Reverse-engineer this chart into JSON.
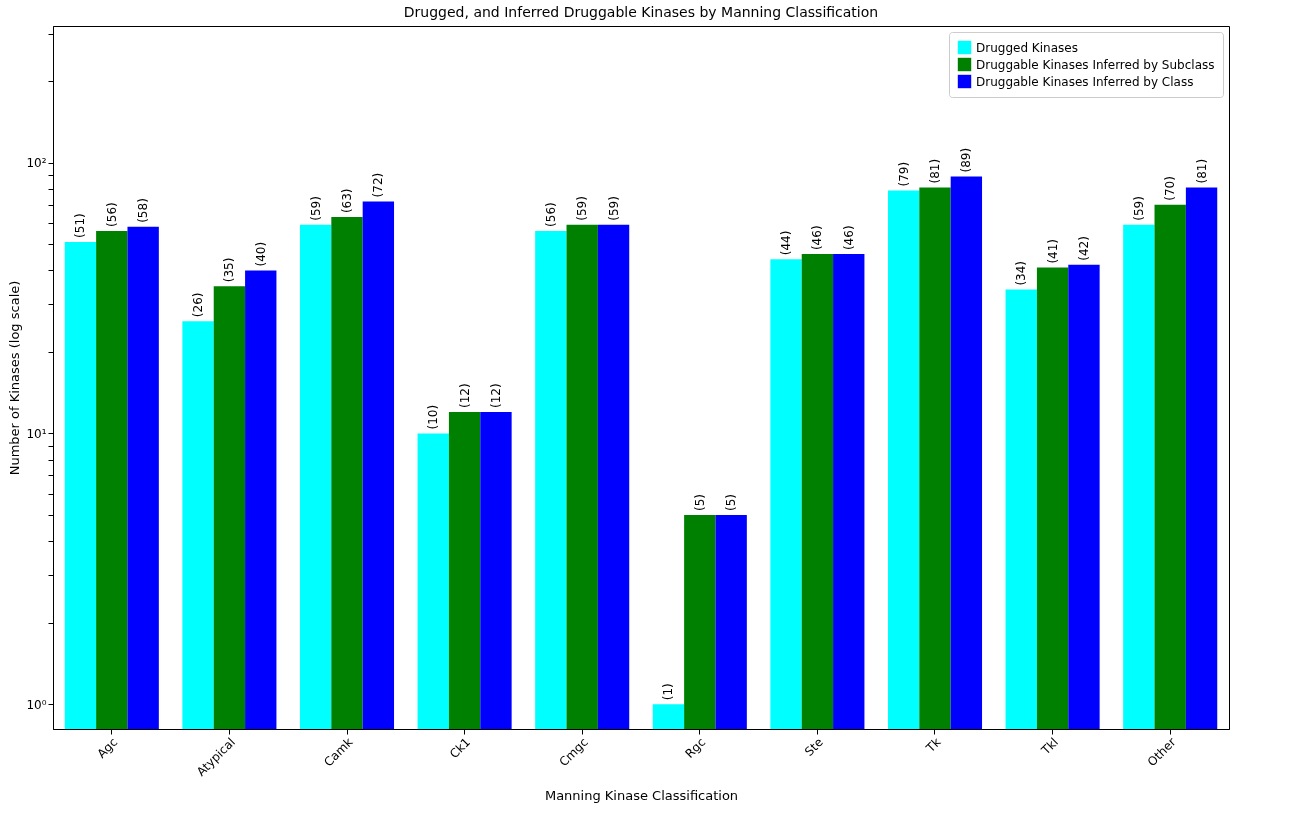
{
  "chart_data": {
    "type": "bar",
    "title": "Drugged, and Inferred Druggable Kinases by Manning Classification",
    "xlabel": "Manning Kinase Classification",
    "ylabel": "Number of Kinases (log scale)",
    "categories": [
      "Agc",
      "Atypical",
      "Camk",
      "Ck1",
      "Cmgc",
      "Rgc",
      "Ste",
      "Tk",
      "Tkl",
      "Other"
    ],
    "series": [
      {
        "name": "Drugged Kinases",
        "color": "#00ffff",
        "values": [
          51,
          26,
          59,
          10,
          56,
          1,
          44,
          79,
          34,
          59
        ],
        "value_labels": [
          "(51)",
          "(26)",
          "(59)",
          "(10)",
          "(56)",
          "(1)",
          "(44)",
          "(79)",
          "(34)",
          "(59)"
        ]
      },
      {
        "name": "Druggable Kinases Inferred by Subclass",
        "color": "#008000",
        "values": [
          56,
          35,
          63,
          12,
          59,
          5,
          46,
          81,
          41,
          70
        ],
        "value_labels": [
          "(56)",
          "(35)",
          "(63)",
          "(12)",
          "(59)",
          "(5)",
          "(46)",
          "(81)",
          "(41)",
          "(70)"
        ]
      },
      {
        "name": "Druggable Kinases Inferred by Class",
        "color": "#0000ff",
        "values": [
          58,
          40,
          72,
          12,
          59,
          5,
          46,
          89,
          42,
          81
        ],
        "value_labels": [
          "(58)",
          "(40)",
          "(72)",
          "(12)",
          "(59)",
          "(5)",
          "(46)",
          "(89)",
          "(42)",
          "(81)"
        ]
      }
    ],
    "log": "y",
    "ylim": [
      0.81,
      320
    ],
    "yticks": [
      {
        "value": 1,
        "label": "10⁰"
      },
      {
        "value": 2,
        "label": null
      },
      {
        "value": 3,
        "label": null
      },
      {
        "value": 4,
        "label": null
      },
      {
        "value": 5,
        "label": null
      },
      {
        "value": 6,
        "label": null
      },
      {
        "value": 7,
        "label": null
      },
      {
        "value": 8,
        "label": null
      },
      {
        "value": 9,
        "label": null
      },
      {
        "value": 10,
        "label": "10¹"
      },
      {
        "value": 20,
        "label": null
      },
      {
        "value": 30,
        "label": null
      },
      {
        "value": 40,
        "label": null
      },
      {
        "value": 50,
        "label": null
      },
      {
        "value": 60,
        "label": null
      },
      {
        "value": 70,
        "label": null
      },
      {
        "value": 80,
        "label": null
      },
      {
        "value": 90,
        "label": null
      },
      {
        "value": 100,
        "label": "10²"
      },
      {
        "value": 200,
        "label": null
      },
      {
        "value": 300,
        "label": null
      }
    ],
    "legend": "top right",
    "grid": false
  }
}
